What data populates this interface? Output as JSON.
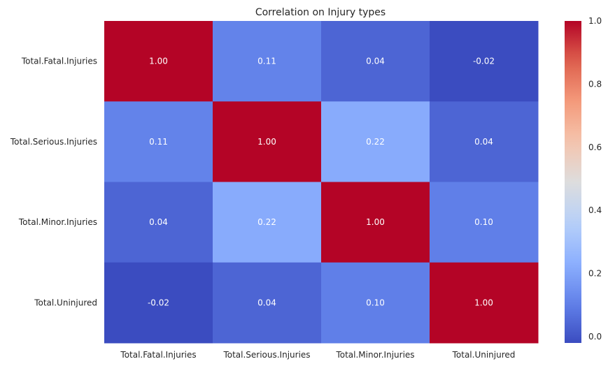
{
  "chart_data": {
    "type": "heatmap",
    "title": "Correlation on Injury types",
    "rows": [
      "Total.Fatal.Injuries",
      "Total.Serious.Injuries",
      "Total.Minor.Injuries",
      "Total.Uninjured"
    ],
    "columns": [
      "Total.Fatal.Injuries",
      "Total.Serious.Injuries",
      "Total.Minor.Injuries",
      "Total.Uninjured"
    ],
    "values": [
      [
        1.0,
        0.11,
        0.04,
        -0.02
      ],
      [
        0.11,
        1.0,
        0.22,
        0.04
      ],
      [
        0.04,
        0.22,
        1.0,
        0.1
      ],
      [
        -0.02,
        0.04,
        0.1,
        1.0
      ]
    ],
    "cell_labels": [
      [
        "1.00",
        "0.11",
        "0.04",
        "-0.02"
      ],
      [
        "0.11",
        "1.00",
        "0.22",
        "0.04"
      ],
      [
        "0.04",
        "0.22",
        "1.00",
        "0.10"
      ],
      [
        "-0.02",
        "0.04",
        "0.10",
        "1.00"
      ]
    ],
    "colormap": "coolwarm",
    "vmin": -0.02,
    "vmax": 1.0,
    "colorbar": {
      "ticks": [
        0.0,
        0.2,
        0.4,
        0.6,
        0.8,
        1.0
      ],
      "tick_labels": [
        "0.0",
        "0.2",
        "0.4",
        "0.6",
        "0.8",
        "1.0"
      ]
    },
    "grid": false,
    "legend": "colorbar-right"
  }
}
